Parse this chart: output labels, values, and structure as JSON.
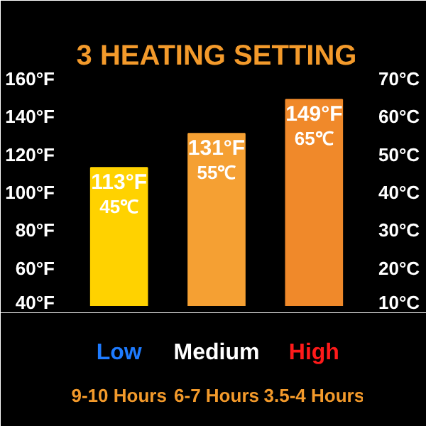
{
  "chart_data": {
    "type": "bar",
    "title": "3 HEATING SETTING",
    "categories": [
      "Low",
      "Medium",
      "High"
    ],
    "values": [
      113,
      131,
      149
    ],
    "colors": [
      "#ffd200",
      "#f5a033",
      "#f0892a"
    ],
    "value_labels": [
      "113°F\n45℃",
      "131°F\n55℃",
      "149°F\n65℃"
    ],
    "ylim": [
      40,
      160
    ],
    "yticks": [
      {
        "value": 40,
        "label": "40°F"
      },
      {
        "value": 60,
        "label": "60°F"
      },
      {
        "value": 80,
        "label": "80°F"
      },
      {
        "value": 100,
        "label": "100°F"
      },
      {
        "value": 120,
        "label": "120°F"
      },
      {
        "value": 140,
        "label": "140°F"
      },
      {
        "value": 160,
        "label": "160°F"
      }
    ],
    "y2lim": [
      10,
      70
    ],
    "y2ticks": [
      {
        "value": 10,
        "label": "10°C"
      },
      {
        "value": 20,
        "label": "20°C"
      },
      {
        "value": 30,
        "label": "30°C"
      },
      {
        "value": 40,
        "label": "40°C"
      },
      {
        "value": 50,
        "label": "50°C"
      },
      {
        "value": 60,
        "label": "60°C"
      },
      {
        "value": 70,
        "label": "70°C"
      }
    ],
    "annotations": [
      "9-10 Hours",
      "6-7 Hours",
      "3.5-4 Hours"
    ],
    "grid": false
  }
}
